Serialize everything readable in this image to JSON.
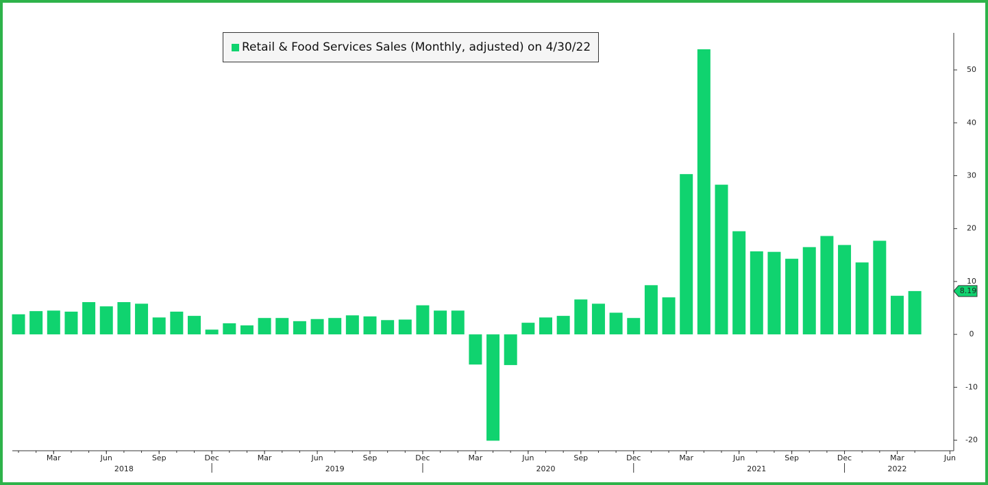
{
  "chart_data": {
    "type": "bar",
    "legend": "Retail & Food Services Sales (Monthly, adjusted) on 4/30/22",
    "x": [
      "2018-01",
      "2018-02",
      "2018-03",
      "2018-04",
      "2018-05",
      "2018-06",
      "2018-07",
      "2018-08",
      "2018-09",
      "2018-10",
      "2018-11",
      "2018-12",
      "2019-01",
      "2019-02",
      "2019-03",
      "2019-04",
      "2019-05",
      "2019-06",
      "2019-07",
      "2019-08",
      "2019-09",
      "2019-10",
      "2019-11",
      "2019-12",
      "2020-01",
      "2020-02",
      "2020-03",
      "2020-04",
      "2020-05",
      "2020-06",
      "2020-07",
      "2020-08",
      "2020-09",
      "2020-10",
      "2020-11",
      "2020-12",
      "2021-01",
      "2021-02",
      "2021-03",
      "2021-04",
      "2021-05",
      "2021-06",
      "2021-07",
      "2021-08",
      "2021-09",
      "2021-10",
      "2021-11",
      "2021-12",
      "2022-01",
      "2022-02",
      "2022-03",
      "2022-04"
    ],
    "series": [
      {
        "name": "Retail & Food Services Sales (Monthly, adjusted) on 4/30/22",
        "color": "#10d36f",
        "values": [
          3.8,
          4.4,
          4.5,
          4.3,
          6.1,
          5.3,
          6.1,
          5.8,
          3.2,
          4.3,
          3.5,
          0.9,
          2.1,
          1.7,
          3.1,
          3.1,
          2.5,
          2.9,
          3.1,
          3.6,
          3.4,
          2.7,
          2.8,
          5.5,
          4.5,
          4.5,
          -5.7,
          -20.1,
          -5.8,
          2.2,
          3.2,
          3.5,
          6.6,
          5.8,
          4.1,
          3.1,
          9.3,
          7.0,
          30.3,
          53.9,
          28.3,
          19.5,
          15.7,
          15.6,
          14.3,
          16.5,
          18.6,
          16.9,
          13.6,
          17.7,
          7.3,
          8.19
        ],
        "value_labels": [
          null,
          null,
          null,
          null,
          null,
          null,
          null,
          null,
          null,
          null,
          null,
          null,
          null,
          null,
          null,
          null,
          null,
          null,
          null,
          null,
          null,
          null,
          null,
          null,
          null,
          null,
          null,
          null,
          null,
          null,
          null,
          null,
          null,
          null,
          null,
          null,
          null,
          null,
          null,
          null,
          null,
          null,
          null,
          null,
          null,
          null,
          null,
          null,
          null,
          null,
          null,
          "8.19"
        ]
      }
    ],
    "ylim": [
      -22,
      57
    ],
    "yticks": [
      -20,
      -10,
      0,
      10,
      20,
      30,
      40,
      50
    ],
    "y_axis_side": "right",
    "xlim": [
      "2018-01",
      "2022-06"
    ],
    "xticks": [
      {
        "value": "2018-03",
        "label": "Mar"
      },
      {
        "value": "2018-06",
        "label": "Jun"
      },
      {
        "value": "2018-09",
        "label": "Sep"
      },
      {
        "value": "2018-12",
        "label": "Dec"
      },
      {
        "value": "2019-03",
        "label": "Mar"
      },
      {
        "value": "2019-06",
        "label": "Jun"
      },
      {
        "value": "2019-09",
        "label": "Sep"
      },
      {
        "value": "2019-12",
        "label": "Dec"
      },
      {
        "value": "2020-03",
        "label": "Mar"
      },
      {
        "value": "2020-06",
        "label": "Jun"
      },
      {
        "value": "2020-09",
        "label": "Sep"
      },
      {
        "value": "2020-12",
        "label": "Dec"
      },
      {
        "value": "2021-03",
        "label": "Mar"
      },
      {
        "value": "2021-06",
        "label": "Jun"
      },
      {
        "value": "2021-09",
        "label": "Sep"
      },
      {
        "value": "2021-12",
        "label": "Dec"
      },
      {
        "value": "2022-03",
        "label": "Mar"
      },
      {
        "value": "2022-06",
        "label": "Jun"
      }
    ],
    "year_ticks": [
      {
        "value": "2018-07",
        "label": "2018"
      },
      {
        "value": "2019-07",
        "label": "2019"
      },
      {
        "value": "2020-07",
        "label": "2020"
      },
      {
        "value": "2021-07",
        "label": "2021"
      },
      {
        "value": "2022-03",
        "label": "2022"
      }
    ]
  }
}
